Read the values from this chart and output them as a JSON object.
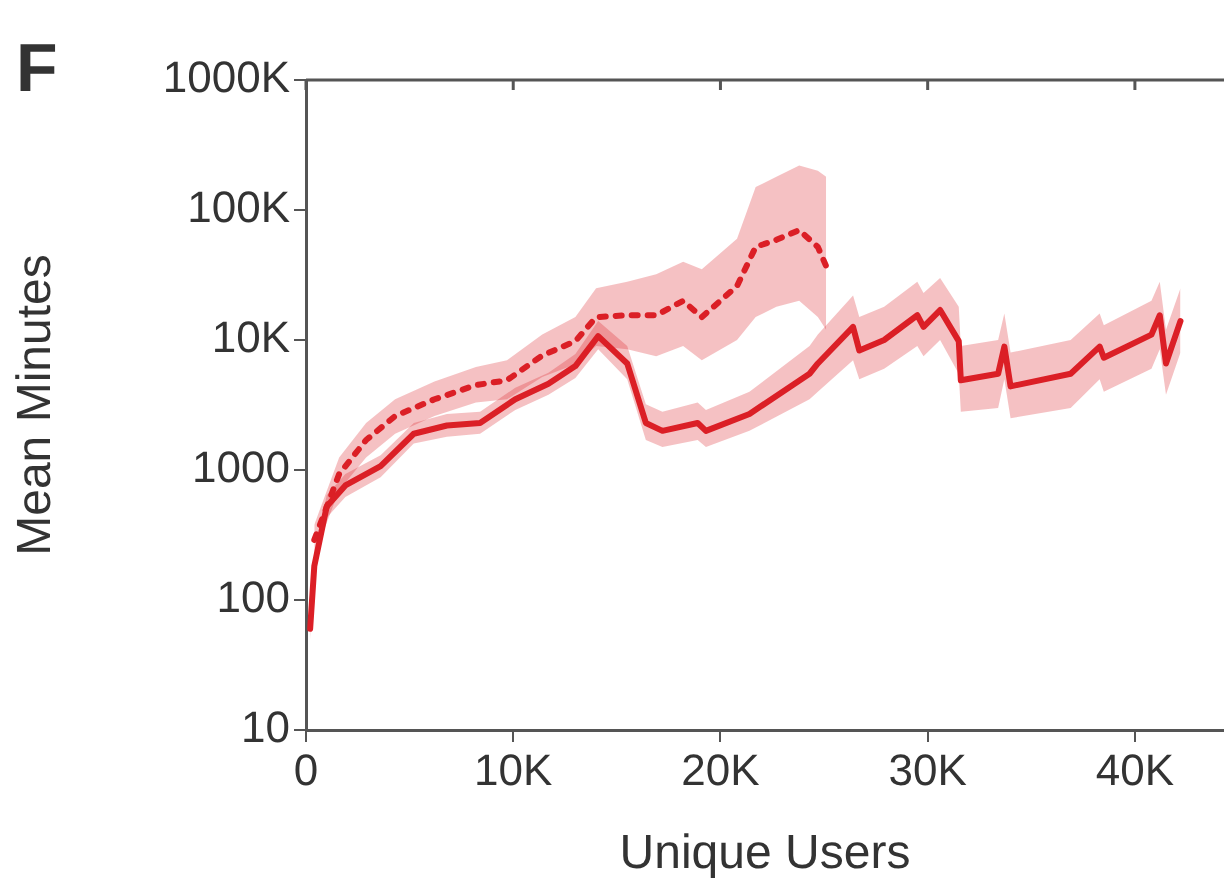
{
  "chart_data": {
    "type": "line",
    "xlabel": "Unique Users",
    "ylabel": "Mean Minutes",
    "annotations": [
      "F"
    ],
    "log": "y",
    "grid": false,
    "legend": false,
    "marker": "none",
    "xlim": [
      0,
      44300
    ],
    "xticks": [
      0,
      {
        "value": 10000,
        "label": "10K"
      },
      {
        "value": 20000,
        "label": "20K"
      },
      {
        "value": 30000,
        "label": "30K"
      },
      {
        "value": 40000,
        "label": "40K"
      }
    ],
    "ylim": [
      10,
      1000000
    ],
    "yticks": [
      10,
      100,
      1000,
      {
        "value": 10000,
        "label": "10K"
      },
      {
        "value": 100000,
        "label": "100K"
      },
      {
        "value": 1000000,
        "label": "1000K"
      }
    ],
    "series": [
      {
        "color": "#dc1f26",
        "line_style": "solid",
        "x": [
          200,
          400,
          1000,
          1900,
          3600,
          5200,
          6800,
          8400,
          10100,
          11700,
          13000,
          14100,
          15500,
          16400,
          17200,
          18900,
          19300,
          21400,
          24300,
          24700,
          26400,
          26700,
          27900,
          29500,
          29800,
          30600,
          31500,
          31600,
          33400,
          33700,
          34000,
          36900,
          38300,
          38500,
          40800,
          41200,
          41500,
          42200
        ],
        "values": [
          60,
          182,
          525,
          760,
          1070,
          1900,
          2200,
          2300,
          3500,
          4600,
          6300,
          10700,
          6600,
          2300,
          2000,
          2300,
          2000,
          2700,
          5500,
          6600,
          12600,
          8300,
          10000,
          15500,
          12600,
          17000,
          9800,
          4900,
          5500,
          8900,
          4400,
          5500,
          8900,
          7300,
          11000,
          15500,
          6600,
          14000
        ],
        "lower": [
          50,
          150,
          430,
          620,
          880,
          1600,
          1800,
          1900,
          2900,
          3800,
          5100,
          8500,
          5000,
          1700,
          1500,
          1700,
          1500,
          2000,
          3500,
          4000,
          7000,
          5000,
          6000,
          9000,
          7500,
          10000,
          5500,
          2800,
          3000,
          5000,
          2500,
          3000,
          5000,
          4000,
          6000,
          8500,
          3800,
          8000
        ],
        "upper": [
          75,
          220,
          640,
          930,
          1300,
          2300,
          2700,
          2800,
          4300,
          5600,
          7800,
          14000,
          9000,
          3200,
          2800,
          3300,
          2900,
          4000,
          9000,
          11000,
          22000,
          15000,
          18000,
          28000,
          23000,
          30000,
          18000,
          9000,
          10000,
          16000,
          8000,
          10000,
          16000,
          13000,
          20000,
          28000,
          12000,
          25000
        ]
      },
      {
        "color": "#dc1f26",
        "line_style": "dotted",
        "x": [
          400,
          1600,
          2900,
          4300,
          6200,
          8200,
          9700,
          11400,
          13000,
          14000,
          15500,
          16900,
          18200,
          19100,
          20800,
          21700,
          22700,
          23800,
          24700,
          25100
        ],
        "values": [
          290,
          930,
          1700,
          2600,
          3500,
          4500,
          4900,
          7600,
          9800,
          15000,
          15500,
          15500,
          20000,
          15000,
          26000,
          52000,
          59000,
          70000,
          52000,
          37000
        ],
        "lower": [
          220,
          700,
          1250,
          1900,
          2600,
          3300,
          3500,
          5200,
          6500,
          9000,
          8500,
          7500,
          9000,
          7000,
          10000,
          15000,
          18000,
          20000,
          15000,
          12000
        ],
        "upper": [
          380,
          1250,
          2300,
          3500,
          4800,
          6200,
          7000,
          11000,
          15000,
          25000,
          28000,
          32000,
          40000,
          35000,
          60000,
          150000,
          180000,
          220000,
          200000,
          180000
        ]
      }
    ]
  }
}
